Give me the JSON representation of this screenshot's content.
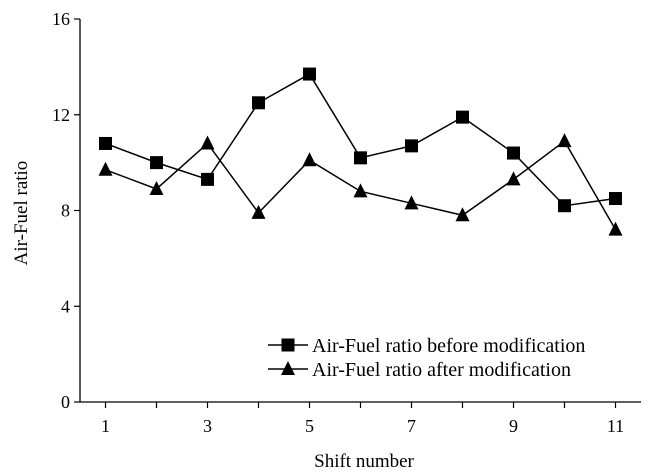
{
  "chart_data": {
    "type": "line",
    "title": "",
    "xlabel": "Shift number",
    "ylabel": "Air-Fuel ratio",
    "x": [
      1,
      2,
      3,
      4,
      5,
      6,
      7,
      8,
      9,
      10,
      11
    ],
    "xticks": [
      "1",
      "3",
      "5",
      "7",
      "9",
      "11"
    ],
    "xlim": [
      0.5,
      11.5
    ],
    "ylim": [
      0,
      16
    ],
    "yticks": [
      "0",
      "4",
      "8",
      "12",
      "16"
    ],
    "grid": false,
    "legend_position": "bottom-right",
    "series": [
      {
        "name": "Air-Fuel ratio before modification",
        "marker": "square",
        "color": "#000000",
        "values": [
          10.8,
          10.0,
          9.3,
          12.5,
          13.7,
          10.2,
          10.7,
          11.9,
          10.4,
          8.2,
          8.5
        ]
      },
      {
        "name": "Air-Fuel ratio after modification",
        "marker": "triangle",
        "color": "#000000",
        "values": [
          9.7,
          8.9,
          10.8,
          7.9,
          10.1,
          8.8,
          8.3,
          7.8,
          9.3,
          10.9,
          7.2
        ]
      }
    ]
  }
}
